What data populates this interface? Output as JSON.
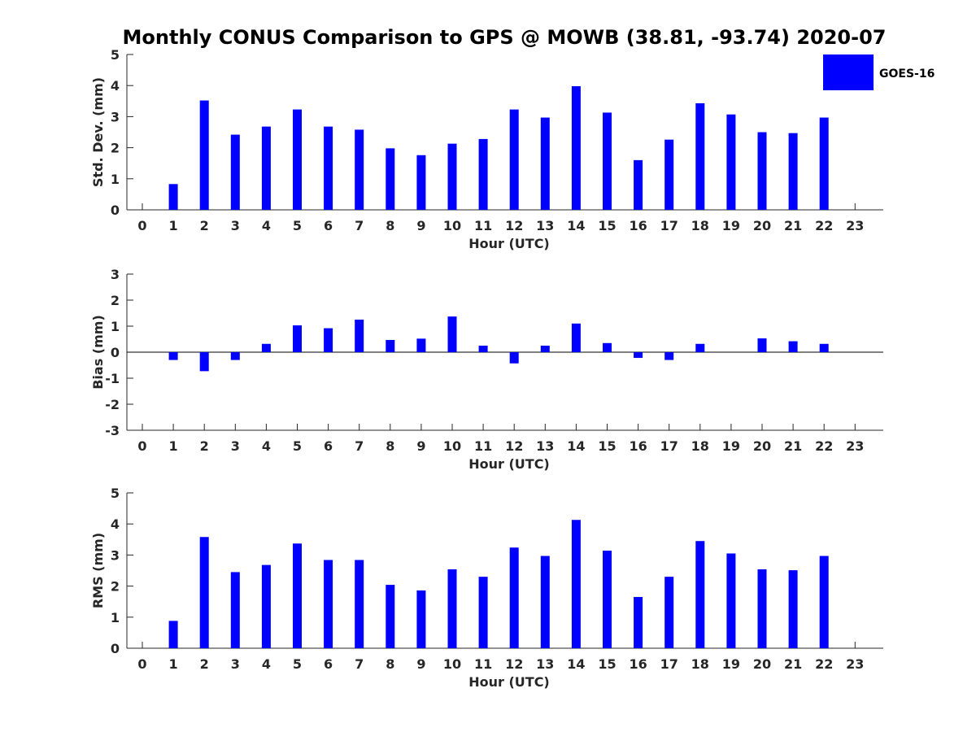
{
  "title": "Monthly CONUS Comparison to GPS @ MOWB (38.81, -93.74) 2020-07",
  "legend": {
    "label": "GOES-16",
    "color": "#0000ff",
    "placement": "top-right"
  },
  "bar_color": "#0000ff",
  "chart_data": [
    {
      "type": "bar",
      "xlabel": "Hour (UTC)",
      "ylabel": "Std. Dev. (mm)",
      "ylim": [
        0,
        5
      ],
      "yticks": [
        0,
        1,
        2,
        3,
        4,
        5
      ],
      "categories": [
        "0",
        "1",
        "2",
        "3",
        "4",
        "5",
        "6",
        "7",
        "8",
        "9",
        "10",
        "11",
        "12",
        "13",
        "14",
        "15",
        "16",
        "17",
        "18",
        "19",
        "20",
        "21",
        "22",
        "23"
      ],
      "series": [
        {
          "name": "GOES-16",
          "values": [
            null,
            0.83,
            3.52,
            2.42,
            2.68,
            3.23,
            2.68,
            2.58,
            1.98,
            1.76,
            2.13,
            2.28,
            3.23,
            2.97,
            3.98,
            3.13,
            1.6,
            2.26,
            3.43,
            3.07,
            2.5,
            2.47,
            2.97,
            null
          ]
        }
      ]
    },
    {
      "type": "bar",
      "xlabel": "Hour (UTC)",
      "ylabel": "Bias (mm)",
      "ylim": [
        -3,
        3
      ],
      "yticks": [
        -3,
        -2,
        -1,
        0,
        1,
        2,
        3
      ],
      "categories": [
        "0",
        "1",
        "2",
        "3",
        "4",
        "5",
        "6",
        "7",
        "8",
        "9",
        "10",
        "11",
        "12",
        "13",
        "14",
        "15",
        "16",
        "17",
        "18",
        "19",
        "20",
        "21",
        "22",
        "23"
      ],
      "series": [
        {
          "name": "GOES-16",
          "values": [
            null,
            -0.3,
            -0.73,
            -0.3,
            0.32,
            1.03,
            0.92,
            1.25,
            0.47,
            0.52,
            1.37,
            0.25,
            -0.43,
            0.25,
            1.1,
            0.35,
            -0.22,
            -0.3,
            0.32,
            0.0,
            0.53,
            0.42,
            0.32,
            null
          ]
        }
      ]
    },
    {
      "type": "bar",
      "xlabel": "Hour (UTC)",
      "ylabel": "RMS (mm)",
      "ylim": [
        0,
        5
      ],
      "yticks": [
        0,
        1,
        2,
        3,
        4,
        5
      ],
      "categories": [
        "0",
        "1",
        "2",
        "3",
        "4",
        "5",
        "6",
        "7",
        "8",
        "9",
        "10",
        "11",
        "12",
        "13",
        "14",
        "15",
        "16",
        "17",
        "18",
        "19",
        "20",
        "21",
        "22",
        "23"
      ],
      "series": [
        {
          "name": "GOES-16",
          "values": [
            null,
            0.88,
            3.58,
            2.45,
            2.68,
            3.37,
            2.84,
            2.84,
            2.04,
            1.86,
            2.54,
            2.3,
            3.24,
            2.97,
            4.13,
            3.14,
            1.65,
            2.3,
            3.45,
            3.05,
            2.54,
            2.51,
            2.97,
            null
          ]
        }
      ]
    }
  ]
}
